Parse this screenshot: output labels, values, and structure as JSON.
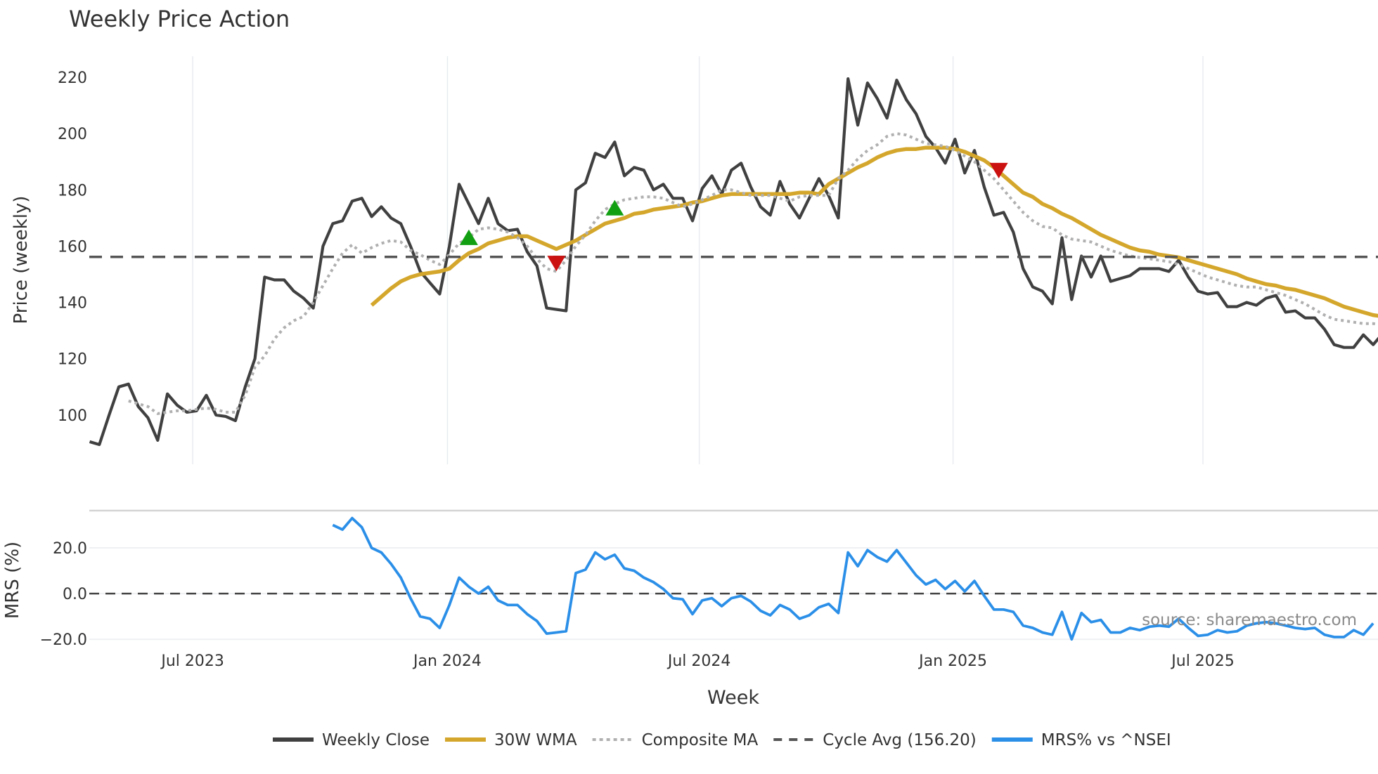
{
  "chart_data": {
    "type": "line",
    "title": "Weekly Price Action",
    "xlabel": "Week",
    "source": "source: sharemaestro.com",
    "x_ticks": [
      {
        "label": "Jul 2023",
        "week": 10.6
      },
      {
        "label": "Jan 2024",
        "week": 36.8
      },
      {
        "label": "Jul 2024",
        "week": 62.7
      },
      {
        "label": "Jan 2025",
        "week": 88.8
      },
      {
        "label": "Jul 2025",
        "week": 114.5
      }
    ],
    "price_panel": {
      "ylabel": "Price (weekly)",
      "ylim": [
        82.5,
        227.5
      ],
      "y_ticks": [
        100,
        120,
        140,
        160,
        180,
        200,
        220
      ],
      "grid": "vertical"
    },
    "mrs_panel": {
      "ylabel": "MRS (%)",
      "ylim": [
        -23,
        36.3
      ],
      "y_ticks": [
        {
          "value": -20,
          "label": "−20.0"
        },
        {
          "value": 0,
          "label": "0.0"
        },
        {
          "value": 20,
          "label": "20.0"
        }
      ]
    },
    "series": [
      {
        "name": "Weekly Close",
        "color": "#404040",
        "style": "solid",
        "start_week": 0,
        "values": [
          90.5,
          89.5,
          100,
          110,
          111,
          103,
          99,
          91,
          107.5,
          103.5,
          101,
          101.5,
          107,
          100,
          99.5,
          98,
          110,
          120,
          149,
          148,
          148,
          144,
          141.5,
          138,
          160,
          168,
          169,
          176,
          177,
          170.5,
          174,
          170,
          168,
          160,
          151,
          147,
          143,
          160,
          182,
          175,
          168,
          177,
          168,
          165.5,
          166,
          158,
          153,
          138,
          137.5,
          137,
          180,
          182.5,
          193,
          191.5,
          197,
          185,
          188,
          187,
          180,
          182,
          177,
          177,
          169,
          180.5,
          185,
          178.5,
          187,
          189.5,
          181,
          174,
          171,
          183,
          175,
          170,
          177,
          184,
          178,
          170,
          219.5,
          203,
          218,
          212.5,
          205.5,
          219,
          212,
          207,
          199,
          195,
          189.5,
          198,
          186,
          194,
          181,
          171,
          172,
          165,
          152,
          145.5,
          144,
          139.5,
          163,
          141,
          156.5,
          149,
          156.5,
          147.5,
          148.5,
          149.5,
          152,
          152,
          152,
          151,
          155,
          149,
          144,
          143,
          143.5,
          138.5,
          138.5,
          140,
          139,
          141.5,
          142.5,
          136.5,
          137,
          134.5,
          134.5,
          130.5,
          125,
          124,
          124,
          128.5,
          125,
          129
        ]
      },
      {
        "name": "30W WMA",
        "color": "#D4A72C",
        "style": "solid",
        "start_week": 29,
        "values": [
          139,
          142,
          145,
          147.5,
          149,
          150,
          150.5,
          151,
          152,
          155,
          157.5,
          159,
          161,
          162,
          163,
          163.5,
          163.5,
          162,
          160.5,
          159,
          160.5,
          162,
          164,
          166,
          168,
          169,
          170,
          171.5,
          172,
          173,
          173.5,
          174,
          174.5,
          175.5,
          176,
          177,
          178,
          178.5,
          178.5,
          178.5,
          178.5,
          178.5,
          178.5,
          178.5,
          179,
          179,
          178.5,
          182,
          184,
          186,
          188,
          189.5,
          191.5,
          193,
          194,
          194.5,
          194.5,
          195,
          195,
          195,
          194.5,
          193.5,
          192,
          190.5,
          188,
          185,
          182,
          179,
          177.5,
          175,
          173.5,
          171.5,
          170,
          168,
          166,
          164,
          162.5,
          161,
          159.5,
          158.5,
          158,
          157,
          156.5,
          156,
          155,
          154,
          153,
          152,
          151,
          150,
          148.5,
          147.5,
          146.5,
          146,
          145,
          144.5,
          143.5,
          142.5,
          141.5,
          140,
          138.5,
          137.5,
          136.5,
          135.5,
          135
        ]
      },
      {
        "name": "Composite MA",
        "color": "#b0b0b0",
        "style": "dotted",
        "start_week": 4,
        "values": [
          105,
          104,
          103,
          100.5,
          101,
          101.5,
          101.5,
          102,
          102.5,
          102,
          101,
          101,
          107,
          117,
          121,
          127,
          131,
          133.5,
          135,
          140,
          146,
          152,
          157.5,
          160.5,
          157.5,
          159.5,
          161,
          162,
          161.5,
          158.5,
          157,
          155,
          153.5,
          157,
          161,
          163,
          166,
          166.5,
          166,
          165,
          163,
          160,
          155.5,
          152,
          151,
          155,
          160,
          164,
          169,
          173,
          175,
          176.5,
          177,
          177.5,
          177.5,
          177,
          175.5,
          174,
          175,
          176.5,
          178,
          180,
          180,
          179,
          178,
          178,
          178,
          177,
          176,
          177.5,
          178,
          178,
          178,
          184,
          187,
          191,
          194,
          196,
          199,
          200,
          199.5,
          198,
          196.5,
          196,
          195.5,
          194,
          192,
          190,
          187,
          184,
          180,
          176,
          172,
          169,
          167,
          166.5,
          164,
          162.5,
          162,
          161.5,
          160,
          158.5,
          157.5,
          156.5,
          156,
          155.5,
          155,
          154.5,
          153.5,
          152,
          150.5,
          149,
          148,
          147,
          146,
          145.5,
          145.5,
          144.5,
          143.5,
          142.5,
          141,
          139.5,
          137.5,
          135.5,
          134,
          133.5,
          133,
          132.5,
          132.5,
          132
        ]
      },
      {
        "name": "Cycle Avg (156.20)",
        "color": "#555555",
        "style": "dashed",
        "value": 156.2
      },
      {
        "name": "MRS% vs ^NSEI",
        "color": "#2b8fe8",
        "style": "solid",
        "panel": "mrs",
        "start_week": 25,
        "values": [
          30,
          28,
          33,
          29,
          20,
          18,
          13,
          7,
          -2,
          -10,
          -11,
          -15,
          -5,
          7,
          3,
          0,
          3,
          -3,
          -5,
          -5,
          -9,
          -12,
          -17.5,
          -17,
          -16.5,
          9,
          10.5,
          18,
          15,
          17,
          11,
          10,
          7,
          5,
          2,
          -2,
          -2.5,
          -9,
          -3,
          -2,
          -5.5,
          -2,
          -1,
          -3.5,
          -7.5,
          -9.5,
          -5,
          -7,
          -11,
          -9.5,
          -6,
          -4.5,
          -8.5,
          18,
          12,
          19,
          16,
          14,
          19,
          13.5,
          8,
          4,
          6,
          2,
          5.5,
          1,
          5.5,
          -1,
          -7,
          -7,
          -8,
          -14,
          -15,
          -17,
          -18,
          -8,
          -20,
          -8.5,
          -12.5,
          -11.5,
          -17,
          -17,
          -15,
          -16,
          -14.5,
          -14,
          -14.5,
          -11,
          -15,
          -18.5,
          -18,
          -16,
          -17,
          -16.5,
          -14,
          -13,
          -12.5,
          -13,
          -14,
          -15,
          -15.5,
          -15,
          -18,
          -19,
          -19,
          -16,
          -18,
          -13
        ]
      }
    ],
    "signals": [
      {
        "type": "buy",
        "week": 39,
        "value": 163,
        "color": "#12a012"
      },
      {
        "type": "sell",
        "week": 48,
        "value": 154,
        "color": "#cc1111"
      },
      {
        "type": "buy",
        "week": 54,
        "value": 173.5,
        "color": "#12a012"
      },
      {
        "type": "sell",
        "week": 93.5,
        "value": 187,
        "color": "#cc1111"
      }
    ],
    "mrs_zero_line": 0,
    "legend": {
      "placement": "bottom-center"
    }
  }
}
